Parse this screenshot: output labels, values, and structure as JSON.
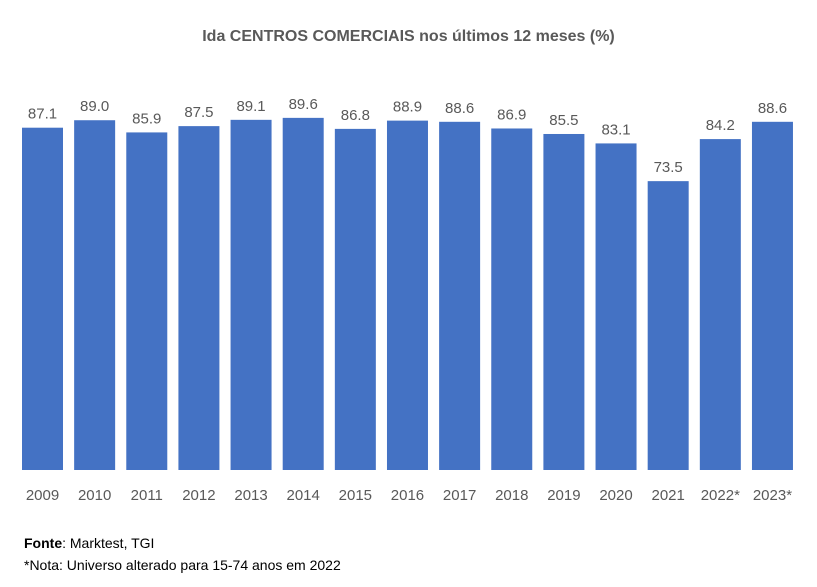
{
  "chart_data": {
    "type": "bar",
    "title": "Ida CENTROS COMERCIAIS nos últimos 12 meses (%)",
    "categories": [
      "2009",
      "2010",
      "2011",
      "2012",
      "2013",
      "2014",
      "2015",
      "2016",
      "2017",
      "2018",
      "2019",
      "2020",
      "2021",
      "2022*",
      "2023*"
    ],
    "values": [
      87.1,
      89.0,
      85.9,
      87.5,
      89.1,
      89.6,
      86.8,
      88.9,
      88.6,
      86.9,
      85.5,
      83.1,
      73.5,
      84.2,
      88.6
    ],
    "xlabel": "",
    "ylabel": "",
    "ylim": [
      0,
      100
    ],
    "grid": false,
    "bar_color": "#4472C4"
  },
  "footer": {
    "source_label": "Fonte",
    "source_text": ": Marktest, TGI",
    "note": "*Nota: Universo alterado para 15-74 anos em 2022"
  }
}
